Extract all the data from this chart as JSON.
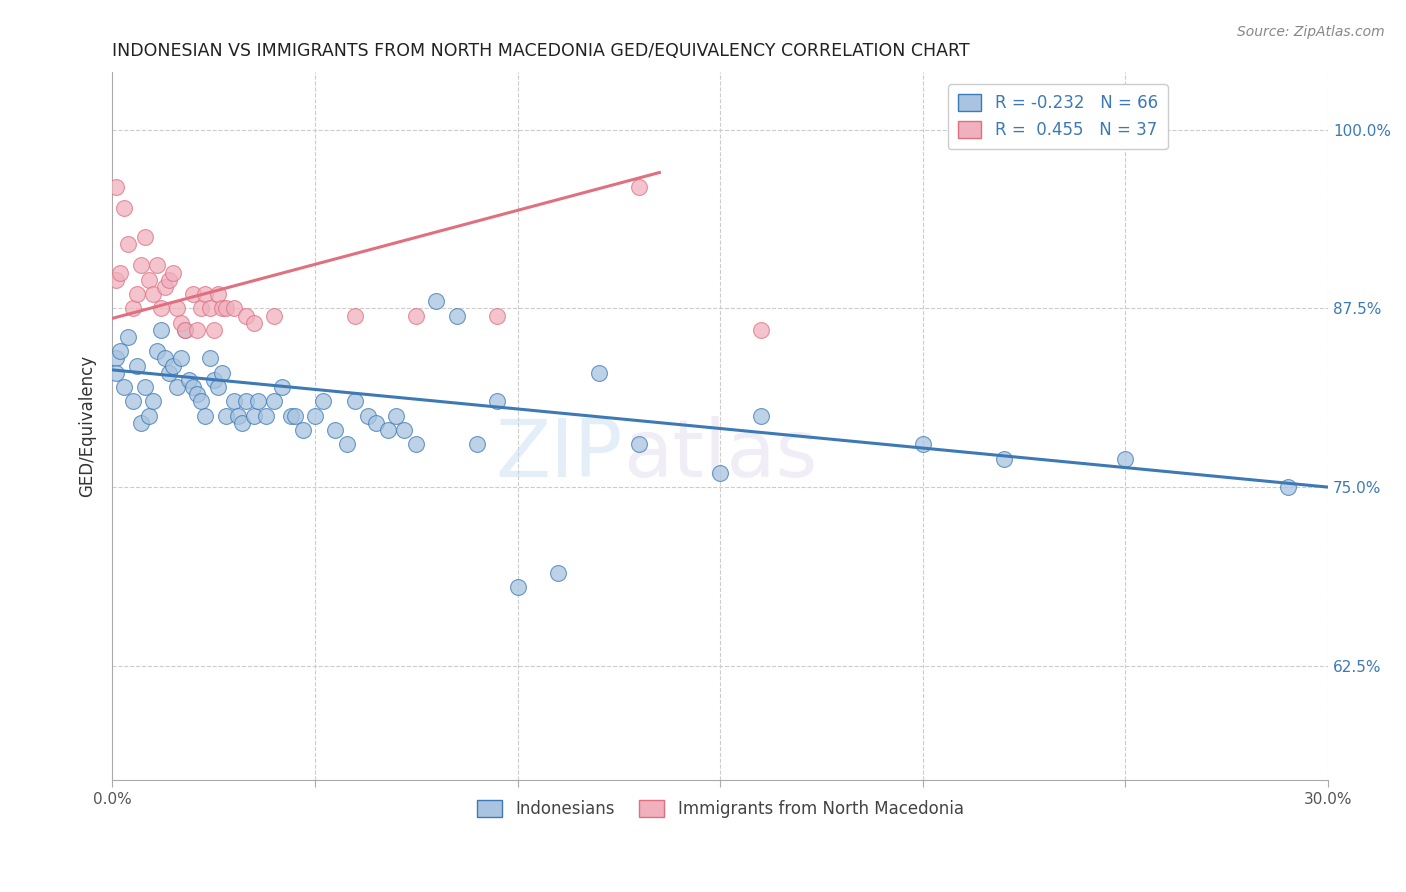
{
  "title": "INDONESIAN VS IMMIGRANTS FROM NORTH MACEDONIA GED/EQUIVALENCY CORRELATION CHART",
  "source": "Source: ZipAtlas.com",
  "ylabel": "GED/Equivalency",
  "xlim": [
    0.0,
    0.3
  ],
  "ylim": [
    0.545,
    1.04
  ],
  "yticks": [
    0.625,
    0.75,
    0.875,
    1.0
  ],
  "ytick_labels": [
    "62.5%",
    "75.0%",
    "87.5%",
    "100.0%"
  ],
  "xticks": [
    0.0,
    0.05,
    0.1,
    0.15,
    0.2,
    0.25,
    0.3
  ],
  "xtick_labels": [
    "0.0%",
    "",
    "",
    "",
    "",
    "",
    "30.0%"
  ],
  "legend_r_blue": "-0.232",
  "legend_n_blue": "66",
  "legend_r_pink": "0.455",
  "legend_n_pink": "37",
  "blue_scatter_x": [
    0.001,
    0.001,
    0.002,
    0.003,
    0.004,
    0.005,
    0.006,
    0.007,
    0.008,
    0.009,
    0.01,
    0.011,
    0.012,
    0.013,
    0.014,
    0.015,
    0.016,
    0.017,
    0.018,
    0.019,
    0.02,
    0.021,
    0.022,
    0.023,
    0.024,
    0.025,
    0.026,
    0.027,
    0.028,
    0.03,
    0.031,
    0.032,
    0.033,
    0.035,
    0.036,
    0.038,
    0.04,
    0.042,
    0.044,
    0.045,
    0.047,
    0.05,
    0.052,
    0.055,
    0.058,
    0.06,
    0.063,
    0.065,
    0.068,
    0.07,
    0.072,
    0.075,
    0.08,
    0.085,
    0.09,
    0.095,
    0.1,
    0.11,
    0.12,
    0.13,
    0.15,
    0.16,
    0.2,
    0.22,
    0.25,
    0.29
  ],
  "blue_scatter_y": [
    0.84,
    0.83,
    0.845,
    0.82,
    0.855,
    0.81,
    0.835,
    0.795,
    0.82,
    0.8,
    0.81,
    0.845,
    0.86,
    0.84,
    0.83,
    0.835,
    0.82,
    0.84,
    0.86,
    0.825,
    0.82,
    0.815,
    0.81,
    0.8,
    0.84,
    0.825,
    0.82,
    0.83,
    0.8,
    0.81,
    0.8,
    0.795,
    0.81,
    0.8,
    0.81,
    0.8,
    0.81,
    0.82,
    0.8,
    0.8,
    0.79,
    0.8,
    0.81,
    0.79,
    0.78,
    0.81,
    0.8,
    0.795,
    0.79,
    0.8,
    0.79,
    0.78,
    0.88,
    0.87,
    0.78,
    0.81,
    0.68,
    0.69,
    0.83,
    0.78,
    0.76,
    0.8,
    0.78,
    0.77,
    0.77,
    0.75
  ],
  "pink_scatter_x": [
    0.001,
    0.001,
    0.002,
    0.003,
    0.004,
    0.005,
    0.006,
    0.007,
    0.008,
    0.009,
    0.01,
    0.011,
    0.012,
    0.013,
    0.014,
    0.015,
    0.016,
    0.017,
    0.018,
    0.02,
    0.021,
    0.022,
    0.023,
    0.024,
    0.025,
    0.026,
    0.027,
    0.028,
    0.03,
    0.033,
    0.035,
    0.04,
    0.06,
    0.075,
    0.095,
    0.13,
    0.16
  ],
  "pink_scatter_y": [
    0.96,
    0.895,
    0.9,
    0.945,
    0.92,
    0.875,
    0.885,
    0.905,
    0.925,
    0.895,
    0.885,
    0.905,
    0.875,
    0.89,
    0.895,
    0.9,
    0.875,
    0.865,
    0.86,
    0.885,
    0.86,
    0.875,
    0.885,
    0.875,
    0.86,
    0.885,
    0.875,
    0.875,
    0.875,
    0.87,
    0.865,
    0.87,
    0.87,
    0.87,
    0.87,
    0.96,
    0.86
  ],
  "blue_line_x": [
    0.0,
    0.3
  ],
  "blue_line_y": [
    0.832,
    0.75
  ],
  "pink_line_x": [
    0.0,
    0.135
  ],
  "pink_line_y": [
    0.868,
    0.97
  ],
  "blue_color": "#a8c4e0",
  "blue_line_color": "#3d7ab5",
  "pink_color": "#f0b0be",
  "pink_line_color": "#e07080",
  "watermark_1": "ZIP",
  "watermark_2": "atlas",
  "background_color": "#ffffff",
  "grid_color": "#cccccc"
}
